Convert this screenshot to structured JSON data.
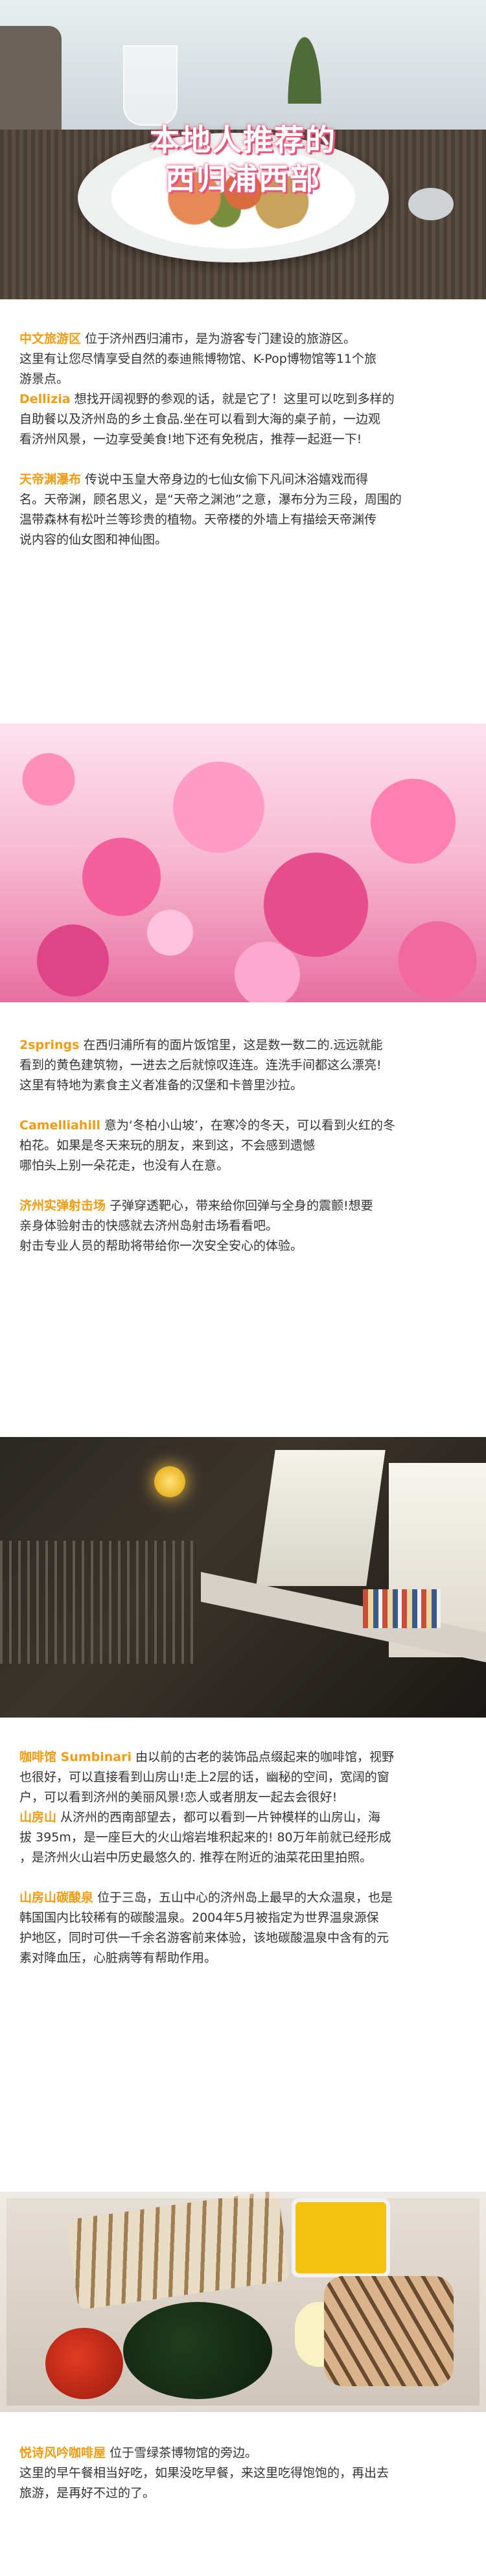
{
  "hero": {
    "title_line1": "本地人推荐的",
    "title_line2": "西归浦西部"
  },
  "section1": {
    "items": [
      {
        "keyword": "中文旅游区",
        "lines": [
          " 位于济州西归浦市，是为游客专门建设的旅游区。",
          "这里有让您尽情享受自然的泰迪熊博物馆、K-Pop博物馆等11个旅",
          "游景点。"
        ]
      },
      {
        "keyword": "Dellizia",
        "lines": [
          " 想找开阔视野的参观的话，就是它了！这里可以吃到多样的",
          "自助餐以及济州岛的乡土食品.坐在可以看到大海的桌子前，一边观",
          "看济州风景，一边享受美食!地下还有免税店，推荐一起逛一下!"
        ]
      },
      {
        "keyword": "天帝渊瀑布",
        "lines": [
          " 传说中玉皇大帝身边的七仙女偷下凡间沐浴嬉戏而得",
          "名。天帝渊，顾名思义，是“天帝之渊池”之意，瀑布分为三段，周围的",
          "温带森林有松叶兰等珍贵的植物。天帝楼的外墙上有描绘天帝渊传",
          "说内容的仙女图和神仙图。"
        ]
      }
    ]
  },
  "section2": {
    "items": [
      {
        "keyword": "2springs",
        "lines": [
          " 在西归浦所有的面片饭馆里，这是数一数二的.远远就能",
          "看到的黄色建筑物，一进去之后就惊叹连连。连洗手间都这么漂亮!",
          "这里有特地为素食主义者准备的汉堡和卡普里沙拉。"
        ]
      },
      {
        "keyword": "Camelliahill",
        "lines": [
          "  意为‘冬柏小山坡’，在寒冷的冬天，可以看到火红的冬",
          "柏花。如果是冬天来玩的朋友，来到这，不会感到遗憾",
          "哪怕头上别一朵花走，也没有人在意。"
        ]
      },
      {
        "keyword": "济州实弹射击场",
        "lines": [
          " 子弹穿透靶心，带来给你回弹与全身的震颤!想要",
          "亲身体验射击的快感就去济州岛射击场看看吧。",
          "射击专业人员的帮助将带给你一次安全安心的体验。"
        ]
      }
    ]
  },
  "section3": {
    "items": [
      {
        "keyword": "咖啡馆 Sumbinari",
        "lines": [
          " 由以前的古老的装饰品点缀起来的咖啡馆，视野",
          "也很好，可以直接看到山房山!走上2层的话，幽秘的空间，宽阔的窗",
          "户，可以看到济州的美丽风景!恋人或者朋友一起去会很好!"
        ]
      },
      {
        "keyword": "山房山",
        "lines": [
          " 从济州的西南部望去，都可以看到一片钟模样的山房山，海",
          "拔 395m，是一座巨大的火山熔岩堆积起来的! 80万年前就已经形成",
          "，是济州火山岩中历史最悠久的. 推荐在附近的油菜花田里拍照。"
        ]
      },
      {
        "keyword": "山房山碳酸泉",
        "lines": [
          " 位于三岛，五山中心的济州岛上最早的大众温泉，也是",
          "韩国国内比较稀有的碳酸温泉。2004年5月被指定为世界温泉源保",
          "护地区，同时可供一千余名游客前来体验，该地碳酸温泉中含有的元",
          "素对降血压，心脏病等有帮助作用。"
        ]
      }
    ]
  },
  "section4": {
    "items": [
      {
        "keyword": "悦诗风吟咖啡屋",
        "lines": [
          " 位于雪绿茶博物馆的旁边。",
          "这里的早午餐相当好吃，如果没吃早餐，来这里吃得饱饱的，再出去",
          "旅游，是再好不过的了。"
        ]
      }
    ]
  },
  "colors": {
    "keyword": "#f39c12",
    "title_shadow": "#e4587e"
  }
}
